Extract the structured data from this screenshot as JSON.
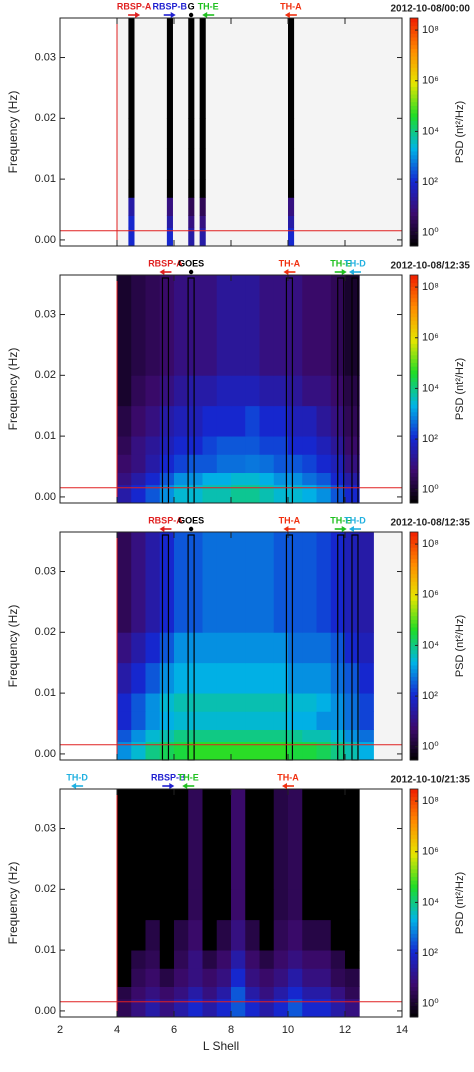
{
  "chart_data": [
    {
      "type": "heatmap",
      "title": "2012-10-08/00:00",
      "ylabel": "Frequency (Hz)",
      "zlabel": "PSD (nt²/Hz)",
      "xlim": [
        2,
        14
      ],
      "xticks": [
        2,
        4,
        6,
        8,
        10,
        12,
        14
      ],
      "ylim": [
        -0.001,
        0.0365
      ],
      "yticks": [
        {
          "value": 0,
          "label": "0.00"
        },
        {
          "value": 0.01,
          "label": "0.01"
        },
        {
          "value": 0.02,
          "label": "0.02"
        },
        {
          "value": 0.03,
          "label": "0.03"
        }
      ],
      "zlim": [
        0.3,
        300000000
      ],
      "zlog": true,
      "zticks": [
        {
          "value": 1,
          "label": "10⁰"
        },
        {
          "value": 100,
          "label": "10²"
        },
        {
          "value": 10000,
          "label": "10⁴"
        },
        {
          "value": 1000000,
          "label": "10⁶"
        },
        {
          "value": 100000000,
          "label": "10⁸"
        }
      ],
      "colorscale": [
        "#000000",
        "#3c0a6e",
        "#1428d2",
        "#00b4e6",
        "#1edc28",
        "#e6e600",
        "#ff8c00",
        "#f01e00"
      ],
      "background": "#f4f4f4",
      "outline": false,
      "boundary_L": 4,
      "cutoff_frequency": 0.0015,
      "x_bins": [
        4.4,
        4.6,
        5.75,
        5.95,
        6.5,
        6.7,
        6.9,
        7.1,
        10.0,
        10.2
      ],
      "y_bins": [
        -0.001,
        0.002,
        0.004,
        0.007,
        0.01,
        0.015,
        0.02,
        0.0365
      ],
      "z": [
        [
          100,
          null,
          100,
          null,
          30,
          null,
          30,
          null,
          100
        ],
        [
          100,
          null,
          30,
          null,
          10,
          null,
          10,
          null,
          30
        ],
        [
          30,
          null,
          10,
          null,
          3,
          null,
          3,
          null,
          10
        ],
        [
          0.3,
          null,
          0.3,
          null,
          0.3,
          null,
          0.3,
          null,
          0.3
        ],
        [
          0.3,
          null,
          0.3,
          null,
          0.3,
          null,
          0.3,
          null,
          0.3
        ],
        [
          0.3,
          null,
          0.3,
          null,
          0.3,
          null,
          0.3,
          null,
          0.3
        ],
        [
          0.3,
          null,
          0.3,
          null,
          0.3,
          null,
          0.3,
          null,
          0.3
        ]
      ],
      "spacecraft": [
        {
          "name": "RBSP-A",
          "color": "#e02020",
          "L": 4.6,
          "direction": "right"
        },
        {
          "name": "RBSP-B",
          "color": "#2020d0",
          "L": 5.85,
          "direction": "right"
        },
        {
          "name": "G",
          "color": "#000000",
          "L": 6.6,
          "direction": "none"
        },
        {
          "name": "TH-E",
          "color": "#20c020",
          "L": 7.2,
          "direction": "left"
        },
        {
          "name": "TH-A",
          "color": "#f03010",
          "L": 10.1,
          "direction": "left"
        }
      ]
    },
    {
      "type": "heatmap",
      "title": "2012-10-08/12:35",
      "ylabel": "Frequency (Hz)",
      "zlabel": "PSD (nt²/Hz)",
      "xlim": [
        2,
        14
      ],
      "xticks": [
        2,
        4,
        6,
        8,
        10,
        12,
        14
      ],
      "ylim": [
        -0.001,
        0.0365
      ],
      "yticks": [
        {
          "value": 0,
          "label": "0.00"
        },
        {
          "value": 0.01,
          "label": "0.01"
        },
        {
          "value": 0.02,
          "label": "0.02"
        },
        {
          "value": 0.03,
          "label": "0.03"
        }
      ],
      "zlim": [
        0.3,
        300000000
      ],
      "zlog": true,
      "zticks": [
        {
          "value": 1,
          "label": "10⁰"
        },
        {
          "value": 100,
          "label": "10²"
        },
        {
          "value": 10000,
          "label": "10⁴"
        },
        {
          "value": 1000000,
          "label": "10⁶"
        },
        {
          "value": 100000000,
          "label": "10⁸"
        }
      ],
      "colorscale": [
        "#000000",
        "#3c0a6e",
        "#1428d2",
        "#00b4e6",
        "#1edc28",
        "#e6e600",
        "#ff8c00",
        "#f01e00"
      ],
      "background": "#ffffff",
      "outline": true,
      "boundary_L": 4,
      "cutoff_frequency": 0.0015,
      "x_bins": [
        4,
        4.5,
        5,
        5.5,
        6,
        6.5,
        7,
        7.5,
        8,
        8.5,
        9,
        9.5,
        10,
        10.5,
        11,
        11.5,
        12,
        12.5
      ],
      "y_bins": [
        -0.001,
        0.002,
        0.004,
        0.007,
        0.01,
        0.015,
        0.02,
        0.0365
      ],
      "z": [
        [
          30,
          100,
          300,
          1000,
          3000,
          3000,
          5000,
          5000,
          8000,
          8000,
          5000,
          3000,
          3000,
          2000,
          1000,
          300,
          100
        ],
        [
          10,
          30,
          100,
          300,
          1000,
          1000,
          2000,
          2000,
          3000,
          3000,
          2000,
          1000,
          1000,
          500,
          300,
          100,
          30
        ],
        [
          5,
          10,
          30,
          100,
          200,
          300,
          300,
          500,
          500,
          600,
          500,
          300,
          300,
          200,
          100,
          50,
          10
        ],
        [
          3,
          10,
          20,
          50,
          100,
          100,
          200,
          300,
          300,
          300,
          200,
          200,
          100,
          100,
          50,
          20,
          5
        ],
        [
          2,
          5,
          10,
          30,
          50,
          50,
          100,
          100,
          100,
          200,
          100,
          100,
          50,
          50,
          20,
          10,
          3
        ],
        [
          1,
          3,
          5,
          10,
          20,
          30,
          30,
          50,
          50,
          50,
          30,
          30,
          20,
          10,
          10,
          5,
          2
        ],
        [
          1,
          2,
          3,
          5,
          10,
          10,
          10,
          20,
          20,
          20,
          10,
          10,
          10,
          5,
          5,
          3,
          1
        ]
      ],
      "spacecraft": [
        {
          "name": "RBSP-A",
          "color": "#e02020",
          "L": 5.7,
          "direction": "left"
        },
        {
          "name": "GOES",
          "color": "#000000",
          "L": 6.6,
          "direction": "none"
        },
        {
          "name": "TH-A",
          "color": "#f03010",
          "L": 10.05,
          "direction": "left"
        },
        {
          "name": "TH-E",
          "color": "#20c020",
          "L": 11.85,
          "direction": "right"
        },
        {
          "name": "TH-D",
          "color": "#20b0e0",
          "L": 12.35,
          "direction": "left"
        }
      ]
    },
    {
      "type": "heatmap",
      "title": "2012-10-08/12:35",
      "ylabel": "Frequency (Hz)",
      "zlabel": "PSD (nt²/Hz)",
      "xlim": [
        2,
        14
      ],
      "xticks": [
        2,
        4,
        6,
        8,
        10,
        12,
        14
      ],
      "ylim": [
        -0.001,
        0.0365
      ],
      "yticks": [
        {
          "value": 0,
          "label": "0.00"
        },
        {
          "value": 0.01,
          "label": "0.01"
        },
        {
          "value": 0.02,
          "label": "0.02"
        },
        {
          "value": 0.03,
          "label": "0.03"
        }
      ],
      "zlim": [
        0.3,
        300000000
      ],
      "zlog": true,
      "zticks": [
        {
          "value": 1,
          "label": "10⁰"
        },
        {
          "value": 100,
          "label": "10²"
        },
        {
          "value": 10000,
          "label": "10⁴"
        },
        {
          "value": 1000000,
          "label": "10⁶"
        },
        {
          "value": 100000000,
          "label": "10⁸"
        }
      ],
      "colorscale": [
        "#000000",
        "#3c0a6e",
        "#1428d2",
        "#00b4e6",
        "#1edc28",
        "#e6e600",
        "#ff8c00",
        "#f01e00"
      ],
      "background": "#f4f4f4",
      "outline": true,
      "boundary_L": 4,
      "cutoff_frequency": 0.0015,
      "x_bins": [
        4,
        4.5,
        5,
        5.5,
        6,
        6.5,
        7,
        7.5,
        8,
        8.5,
        9,
        9.5,
        10,
        10.5,
        11,
        11.5,
        12,
        12.5,
        13
      ],
      "y_bins": [
        -0.001,
        0.002,
        0.004,
        0.007,
        0.01,
        0.015,
        0.02,
        0.0365
      ],
      "z": [
        [
          1000,
          3000,
          10000,
          20000,
          30000,
          50000,
          50000,
          50000,
          50000,
          50000,
          50000,
          50000,
          30000,
          30000,
          20000,
          10000,
          5000,
          2000
        ],
        [
          300,
          1000,
          3000,
          5000,
          10000,
          10000,
          10000,
          10000,
          10000,
          10000,
          10000,
          10000,
          8000,
          5000,
          5000,
          3000,
          1000,
          500
        ],
        [
          100,
          300,
          1000,
          2000,
          3000,
          3000,
          3000,
          3000,
          3000,
          3000,
          3000,
          3000,
          2000,
          2000,
          1000,
          1000,
          500,
          200
        ],
        [
          100,
          300,
          1000,
          3000,
          5000,
          5000,
          5000,
          5000,
          5000,
          5000,
          5000,
          5000,
          3000,
          3000,
          2000,
          1000,
          500,
          200
        ],
        [
          30,
          100,
          300,
          1000,
          2000,
          2000,
          2000,
          2000,
          2000,
          2000,
          2000,
          2000,
          1000,
          1000,
          1000,
          500,
          300,
          100
        ],
        [
          10,
          30,
          100,
          300,
          1000,
          1000,
          1000,
          1000,
          1000,
          1000,
          1000,
          1000,
          500,
          500,
          500,
          300,
          100,
          50
        ],
        [
          3,
          10,
          30,
          100,
          300,
          300,
          500,
          500,
          500,
          500,
          500,
          300,
          300,
          300,
          200,
          100,
          50,
          30
        ]
      ],
      "spacecraft": [
        {
          "name": "RBSP-A",
          "color": "#e02020",
          "L": 5.7,
          "direction": "left"
        },
        {
          "name": "GOES",
          "color": "#000000",
          "L": 6.6,
          "direction": "none"
        },
        {
          "name": "TH-A",
          "color": "#f03010",
          "L": 10.05,
          "direction": "left"
        },
        {
          "name": "TH-E",
          "color": "#20c020",
          "L": 11.85,
          "direction": "right"
        },
        {
          "name": "TH-D",
          "color": "#20b0e0",
          "L": 12.35,
          "direction": "left"
        }
      ]
    },
    {
      "type": "heatmap",
      "title": "2012-10-10/21:35",
      "ylabel": "Frequency (Hz)",
      "zlabel": "PSD (nt²/Hz)",
      "xlabel": "L Shell",
      "xlim": [
        2,
        14
      ],
      "xticks": [
        2,
        4,
        6,
        8,
        10,
        12,
        14
      ],
      "xtick_labels": true,
      "ylim": [
        -0.001,
        0.0365
      ],
      "yticks": [
        {
          "value": 0,
          "label": "0.00"
        },
        {
          "value": 0.01,
          "label": "0.01"
        },
        {
          "value": 0.02,
          "label": "0.02"
        },
        {
          "value": 0.03,
          "label": "0.03"
        }
      ],
      "zlim": [
        0.3,
        300000000
      ],
      "zlog": true,
      "zticks": [
        {
          "value": 1,
          "label": "10⁰"
        },
        {
          "value": 100,
          "label": "10²"
        },
        {
          "value": 10000,
          "label": "10⁴"
        },
        {
          "value": 1000000,
          "label": "10⁶"
        },
        {
          "value": 100000000,
          "label": "10⁸"
        }
      ],
      "colorscale": [
        "#000000",
        "#3c0a6e",
        "#1428d2",
        "#00b4e6",
        "#1edc28",
        "#e6e600",
        "#ff8c00",
        "#f01e00"
      ],
      "background": "#ffffff",
      "outline": false,
      "boundary_L": 4,
      "cutoff_frequency": 0.0015,
      "x_bins": [
        4,
        4.5,
        5,
        5.5,
        6,
        6.5,
        7,
        7.5,
        8,
        8.5,
        9,
        9.5,
        10,
        10.5,
        11,
        11.5,
        12,
        12.5
      ],
      "y_bins": [
        -0.001,
        0.002,
        0.004,
        0.007,
        0.01,
        0.015,
        0.02,
        0.0365
      ],
      "z": [
        [
          3,
          10,
          30,
          10,
          30,
          100,
          30,
          100,
          300,
          100,
          30,
          100,
          300,
          100,
          100,
          30,
          10
        ],
        [
          2,
          5,
          10,
          5,
          10,
          30,
          10,
          30,
          300,
          30,
          10,
          30,
          100,
          30,
          30,
          10,
          3
        ],
        [
          0.3,
          3,
          5,
          2,
          5,
          10,
          5,
          10,
          100,
          10,
          5,
          10,
          30,
          10,
          10,
          3,
          2
        ],
        [
          0.3,
          2,
          3,
          0.3,
          3,
          10,
          2,
          5,
          30,
          5,
          2,
          5,
          10,
          5,
          5,
          2,
          0.3
        ],
        [
          0.3,
          0.3,
          2,
          0.3,
          2,
          5,
          0.3,
          2,
          10,
          2,
          0.3,
          3,
          5,
          2,
          2,
          0.3,
          0.3
        ],
        [
          0.3,
          0.3,
          0.3,
          0.3,
          0.3,
          3,
          0.3,
          0.3,
          5,
          0.3,
          0.3,
          2,
          3,
          0.3,
          0.3,
          0.3,
          0.3
        ],
        [
          0.3,
          0.3,
          0.3,
          0.3,
          0.3,
          3,
          0.3,
          0.3,
          5,
          0.3,
          0.3,
          2,
          3,
          0.3,
          0.3,
          0.3,
          0.3
        ]
      ],
      "spacecraft": [
        {
          "name": "TH-D",
          "color": "#20b0e0",
          "L": 2.6,
          "direction": "left"
        },
        {
          "name": "RBSP-B",
          "color": "#2020d0",
          "L": 5.8,
          "direction": "right"
        },
        {
          "name": "TH-E",
          "color": "#20c020",
          "L": 6.5,
          "direction": "left"
        },
        {
          "name": "TH-A",
          "color": "#f03010",
          "L": 10.0,
          "direction": "left"
        }
      ]
    }
  ]
}
